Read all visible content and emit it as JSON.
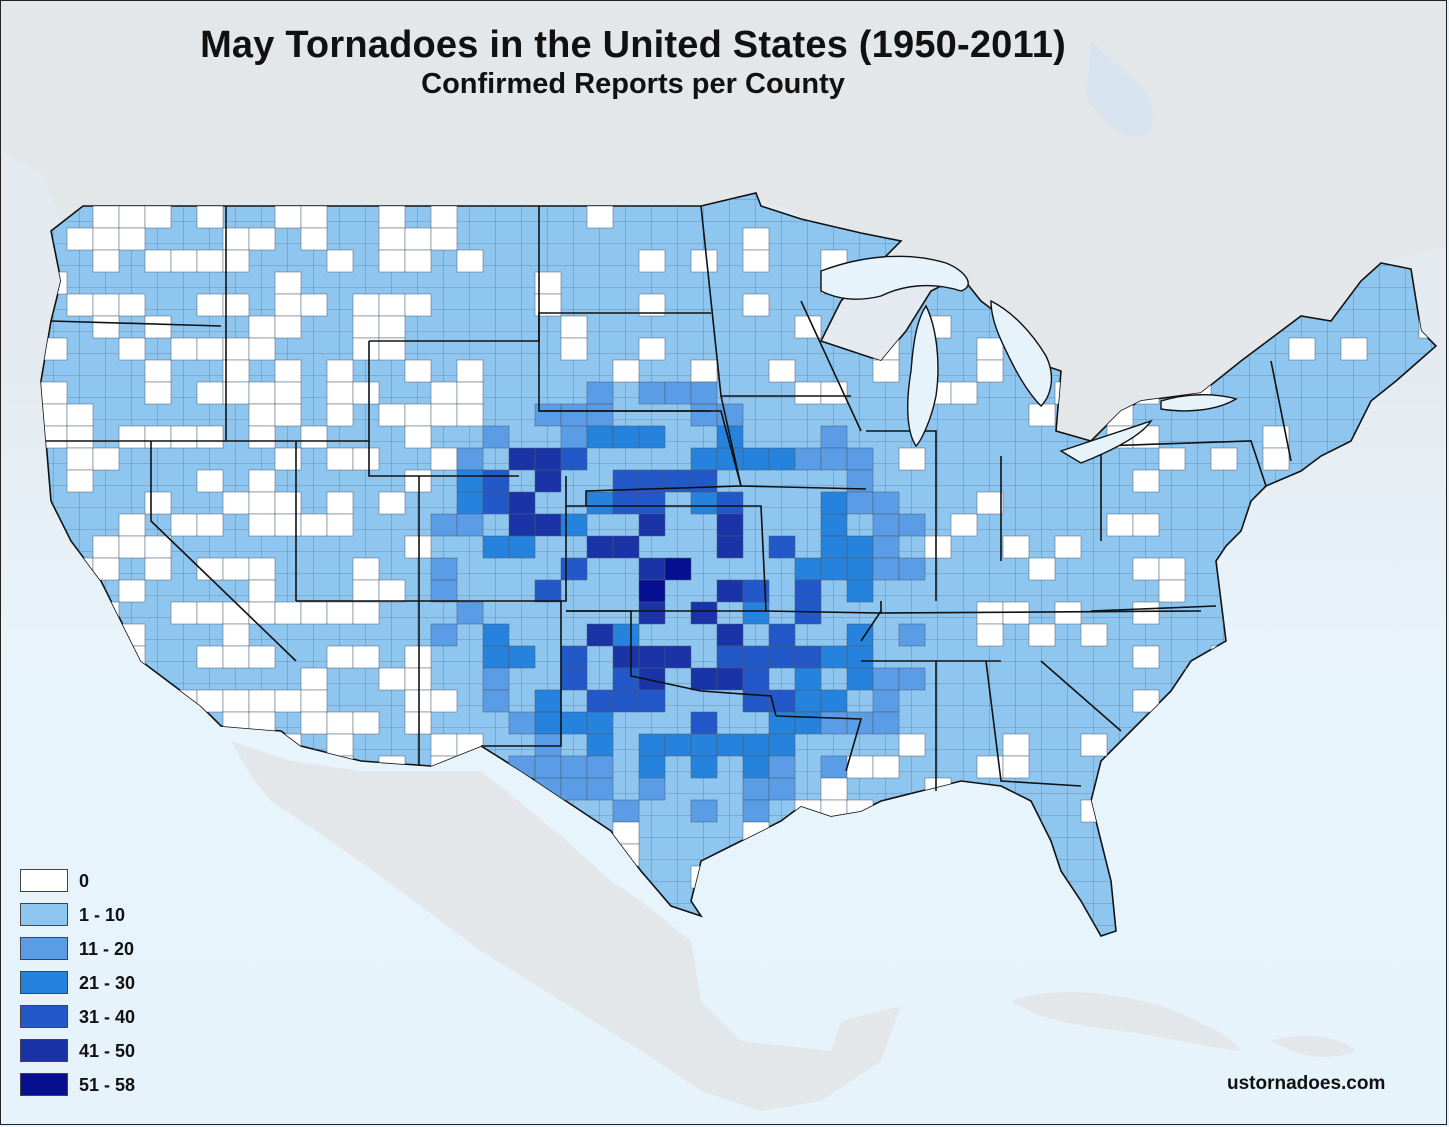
{
  "title": "May Tornadoes in the United States (1950-2011)",
  "subtitle": "Confirmed Reports per County",
  "credit": "ustornadoes.com",
  "colors": {
    "ocean": "#e6f3fb",
    "foreign_land": "#e4e7ea",
    "border": "#111111",
    "county_line": "#4a5a70"
  },
  "legend": [
    {
      "label": "0",
      "color": "#ffffff"
    },
    {
      "label": "1 - 10",
      "color": "#8ec6ef"
    },
    {
      "label": "11 - 20",
      "color": "#5a9de6"
    },
    {
      "label": "21 - 30",
      "color": "#2583dd"
    },
    {
      "label": "31 - 40",
      "color": "#2358c9"
    },
    {
      "label": "41 - 50",
      "color": "#1a34a8"
    },
    {
      "label": "51 - 58",
      "color": "#050f8f"
    }
  ]
}
